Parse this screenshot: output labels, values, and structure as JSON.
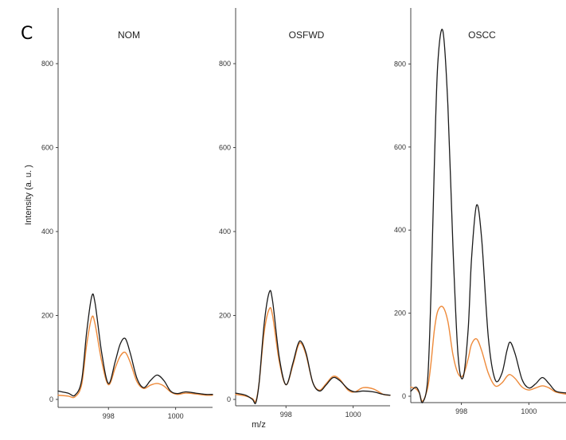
{
  "figure": {
    "panel_letter": "C",
    "ylabel": "Intensity (a. u. )",
    "xlabel": "m/z",
    "colors": {
      "black_series": "#1a1a1a",
      "orange_series": "#ee8a3a",
      "axis": "#444444"
    }
  },
  "chart_data": [
    {
      "type": "line",
      "title": "NOM",
      "xlim": [
        996.5,
        1001.1
      ],
      "ylim": [
        -10,
        920
      ],
      "yticks": [
        0,
        200,
        400,
        600,
        800
      ],
      "xticks": [
        998,
        1000
      ],
      "grid": false,
      "series": [
        {
          "color": "#1a1a1a",
          "x": [
            996.5,
            996.8,
            997.0,
            997.2,
            997.35,
            997.5,
            997.6,
            997.8,
            998.0,
            998.2,
            998.35,
            998.5,
            998.65,
            998.85,
            999.05,
            999.25,
            999.45,
            999.65,
            999.85,
            1000.05,
            1000.3,
            1000.6,
            1000.9,
            1001.1
          ],
          "y": [
            20,
            15,
            10,
            45,
            160,
            245,
            230,
            110,
            38,
            90,
            132,
            145,
            110,
            50,
            28,
            45,
            58,
            45,
            20,
            14,
            18,
            15,
            12,
            12
          ]
        },
        {
          "color": "#ee8a3a",
          "x": [
            996.5,
            996.8,
            997.0,
            997.2,
            997.35,
            997.5,
            997.6,
            997.8,
            998.0,
            998.2,
            998.35,
            998.5,
            998.65,
            998.85,
            999.05,
            999.25,
            999.45,
            999.65,
            999.85,
            1000.05,
            1000.3,
            1000.6,
            1000.9,
            1001.1
          ],
          "y": [
            10,
            8,
            6,
            35,
            130,
            195,
            180,
            90,
            35,
            75,
            103,
            112,
            88,
            42,
            26,
            34,
            38,
            32,
            18,
            12,
            15,
            13,
            10,
            10
          ]
        }
      ]
    },
    {
      "type": "line",
      "title": "OSFWD",
      "xlim": [
        996.5,
        1001.1
      ],
      "ylim": [
        -10,
        920
      ],
      "yticks": [
        0,
        200,
        400,
        600,
        800
      ],
      "xticks": [
        998,
        1000
      ],
      "grid": false,
      "series": [
        {
          "color": "#1a1a1a",
          "x": [
            996.5,
            996.8,
            997.0,
            997.1,
            997.2,
            997.35,
            997.5,
            997.6,
            997.8,
            998.0,
            998.2,
            998.35,
            998.45,
            998.6,
            998.8,
            999.0,
            999.2,
            999.4,
            999.6,
            999.85,
            1000.05,
            1000.3,
            1000.6,
            1000.9,
            1001.1
          ],
          "y": [
            15,
            10,
            0,
            -8,
            40,
            180,
            255,
            235,
            100,
            35,
            85,
            130,
            138,
            110,
            40,
            20,
            35,
            52,
            45,
            25,
            18,
            20,
            18,
            12,
            10
          ]
        },
        {
          "color": "#ee8a3a",
          "x": [
            996.5,
            996.8,
            997.0,
            997.1,
            997.2,
            997.35,
            997.5,
            997.6,
            997.8,
            998.0,
            998.2,
            998.35,
            998.45,
            998.6,
            998.8,
            999.0,
            999.2,
            999.4,
            999.6,
            999.85,
            1000.05,
            1000.3,
            1000.6,
            1000.9,
            1001.1
          ],
          "y": [
            12,
            8,
            2,
            -4,
            40,
            160,
            215,
            200,
            90,
            35,
            80,
            125,
            134,
            105,
            40,
            22,
            38,
            55,
            48,
            22,
            18,
            28,
            25,
            12,
            10
          ]
        }
      ]
    },
    {
      "type": "line",
      "title": "OSCC",
      "xlim": [
        996.5,
        1001.1
      ],
      "ylim": [
        -10,
        920
      ],
      "yticks": [
        0,
        200,
        400,
        600,
        800
      ],
      "xticks": [
        998,
        1000
      ],
      "grid": false,
      "series": [
        {
          "color": "#1a1a1a",
          "x": [
            996.5,
            996.65,
            996.75,
            996.85,
            997.0,
            997.1,
            997.2,
            997.3,
            997.45,
            997.6,
            997.75,
            997.9,
            998.05,
            998.2,
            998.3,
            998.45,
            998.6,
            998.8,
            999.0,
            999.2,
            999.35,
            999.45,
            999.6,
            999.8,
            1000.0,
            1000.2,
            1000.4,
            1000.6,
            1000.8,
            1001.1
          ],
          "y": [
            12,
            22,
            10,
            -15,
            40,
            250,
            560,
            800,
            880,
            700,
            360,
            100,
            45,
            160,
            330,
            460,
            380,
            140,
            40,
            55,
            110,
            130,
            100,
            40,
            20,
            30,
            45,
            30,
            12,
            8
          ]
        },
        {
          "color": "#ee8a3a",
          "x": [
            996.5,
            996.65,
            996.75,
            996.85,
            997.0,
            997.1,
            997.2,
            997.3,
            997.45,
            997.6,
            997.75,
            997.9,
            998.05,
            998.2,
            998.3,
            998.45,
            998.6,
            998.8,
            999.0,
            999.2,
            999.35,
            999.45,
            999.6,
            999.8,
            1000.0,
            1000.2,
            1000.4,
            1000.6,
            1000.8,
            1001.1
          ],
          "y": [
            22,
            18,
            8,
            -12,
            20,
            80,
            160,
            205,
            215,
            180,
            100,
            55,
            50,
            90,
            125,
            138,
            110,
            55,
            25,
            32,
            48,
            52,
            42,
            22,
            15,
            20,
            25,
            20,
            10,
            5
          ]
        }
      ]
    }
  ]
}
